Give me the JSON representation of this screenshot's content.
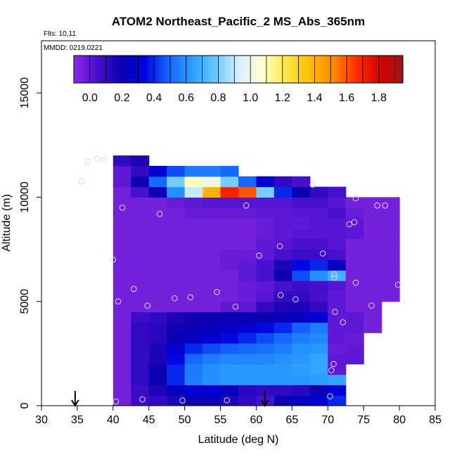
{
  "chart_data": {
    "type": "heatmap",
    "title": "ATOM2 Northeast_Pacific_2 MS_Abs_365nm",
    "annotations": [
      "Flts: 10,11",
      "MMDD: 0219,0221"
    ],
    "xlabel": "Latitude (deg N)",
    "ylabel": "Altitude (m)",
    "xlim": [
      30,
      85
    ],
    "ylim": [
      0,
      17500
    ],
    "x_ticks": [
      "30",
      "35",
      "40",
      "45",
      "50",
      "55",
      "60",
      "65",
      "70",
      "75",
      "80",
      "85"
    ],
    "y_ticks": [
      "0",
      "5000",
      "10000",
      "15000"
    ],
    "colorbar": {
      "range": [
        -0.1,
        1.95
      ],
      "ticks": [
        "0.0",
        "0.2",
        "0.4",
        "0.6",
        "0.8",
        "1.0",
        "1.2",
        "1.4",
        "1.6",
        "1.8"
      ],
      "colors": [
        "#8a2be2",
        "#4b0fd0",
        "#0a00b0",
        "#0000e0",
        "#1464ff",
        "#2a9cff",
        "#64c8ff",
        "#d6f0ff",
        "#ffffd2",
        "#ffe84a",
        "#ffbe00",
        "#ff8c00",
        "#ff3000",
        "#d80000",
        "#9a1a1a"
      ]
    },
    "markers": [
      {
        "type": "arrow-down",
        "lat": 34.7
      },
      {
        "type": "arrow-down",
        "lat": 61.2
      }
    ],
    "lat_bins": [
      40,
      42.5,
      45,
      47.5,
      50,
      52.5,
      55,
      57.5,
      60,
      62.5,
      65,
      67.5,
      70,
      72.5,
      75,
      77.5,
      80
    ],
    "alt_bins": [
      0,
      500,
      1000,
      1500,
      2000,
      2500,
      3000,
      3500,
      4000,
      4500,
      5000,
      5500,
      6000,
      6500,
      7000,
      7500,
      8000,
      8500,
      9000,
      9500,
      10000,
      10500,
      11000,
      11500,
      12000
    ],
    "mean_values": [
      [
        -0.05,
        0.08,
        0.1,
        0.15,
        0.2,
        0.22,
        0.15,
        0.1,
        0.05,
        0.2,
        0.25,
        0.3,
        0.4,
        null,
        null,
        null
      ],
      [
        -0.05,
        0.08,
        0.15,
        0.25,
        0.3,
        0.3,
        0.25,
        0.12,
        0.1,
        0.1,
        0.12,
        0.2,
        0.3,
        null,
        null,
        null
      ],
      [
        -0.05,
        0.1,
        0.2,
        0.4,
        0.55,
        0.6,
        0.62,
        0.62,
        0.62,
        0.62,
        0.62,
        0.64,
        0.66,
        null,
        null,
        null
      ],
      [
        -0.05,
        0.1,
        0.2,
        0.4,
        0.55,
        0.6,
        0.62,
        0.62,
        0.62,
        0.62,
        0.64,
        0.66,
        0.0,
        null,
        null,
        null
      ],
      [
        -0.05,
        0.1,
        0.15,
        0.35,
        0.5,
        0.55,
        0.58,
        0.58,
        0.58,
        0.6,
        0.62,
        0.66,
        0.0,
        0.0,
        null,
        null
      ],
      [
        -0.05,
        0.1,
        0.15,
        0.3,
        0.4,
        0.45,
        0.48,
        0.5,
        0.52,
        0.55,
        0.6,
        0.62,
        -0.02,
        0.0,
        null,
        null
      ],
      [
        -0.05,
        0.1,
        0.12,
        0.2,
        0.25,
        0.3,
        0.35,
        0.4,
        0.45,
        0.5,
        0.55,
        0.58,
        0.0,
        -0.02,
        null,
        null
      ],
      [
        -0.05,
        0.1,
        0.12,
        0.18,
        0.2,
        0.22,
        0.25,
        0.3,
        0.35,
        0.4,
        0.48,
        0.55,
        0.0,
        0.0,
        -0.05,
        null
      ],
      [
        -0.05,
        0.08,
        0.1,
        0.15,
        0.18,
        0.2,
        0.2,
        0.2,
        0.2,
        0.22,
        0.25,
        0.3,
        0.0,
        0.0,
        -0.05,
        null
      ],
      [
        -0.05,
        -0.05,
        -0.05,
        -0.05,
        -0.05,
        -0.05,
        0.0,
        0.0,
        0.1,
        0.15,
        0.15,
        0.1,
        0.0,
        -0.05,
        -0.05,
        null
      ],
      [
        -0.05,
        -0.05,
        -0.05,
        -0.05,
        -0.05,
        -0.05,
        -0.05,
        -0.02,
        0.02,
        0.1,
        0.1,
        0.05,
        0.0,
        -0.05,
        -0.05,
        -0.05
      ],
      [
        -0.05,
        -0.05,
        -0.05,
        -0.05,
        -0.05,
        -0.05,
        -0.05,
        -0.02,
        0.0,
        0.05,
        0.08,
        0.06,
        0.02,
        -0.05,
        -0.05,
        -0.05
      ],
      [
        -0.05,
        -0.05,
        -0.05,
        -0.05,
        -0.05,
        -0.05,
        -0.05,
        0.0,
        0.05,
        0.2,
        0.45,
        0.6,
        0.7,
        -0.05,
        -0.05,
        -0.05
      ],
      [
        -0.05,
        -0.05,
        -0.05,
        -0.05,
        -0.05,
        -0.05,
        -0.02,
        0.0,
        0.05,
        0.15,
        0.35,
        0.4,
        0.25,
        -0.05,
        -0.05,
        -0.05
      ],
      [
        -0.05,
        -0.05,
        -0.05,
        -0.05,
        -0.05,
        -0.05,
        -0.02,
        -0.02,
        0.0,
        0.05,
        0.08,
        0.08,
        0.05,
        -0.05,
        -0.05,
        -0.05
      ],
      [
        -0.05,
        -0.05,
        -0.05,
        -0.05,
        -0.05,
        -0.05,
        -0.05,
        -0.05,
        0.0,
        0.02,
        0.05,
        0.05,
        0.02,
        -0.05,
        -0.05,
        -0.05
      ],
      [
        -0.05,
        -0.05,
        -0.05,
        -0.05,
        -0.05,
        -0.05,
        -0.05,
        -0.05,
        -0.02,
        0.0,
        0.02,
        0.02,
        0.02,
        0.0,
        -0.05,
        -0.05
      ],
      [
        -0.05,
        -0.05,
        -0.05,
        -0.05,
        -0.05,
        -0.05,
        -0.05,
        -0.05,
        -0.02,
        0.0,
        0.0,
        0.02,
        0.02,
        0.0,
        -0.05,
        -0.05
      ],
      [
        -0.05,
        -0.05,
        -0.05,
        -0.05,
        -0.02,
        -0.02,
        -0.02,
        -0.02,
        0.0,
        0.0,
        0.02,
        0.02,
        0.05,
        -0.02,
        -0.05,
        -0.05
      ],
      [
        -0.05,
        -0.05,
        -0.05,
        -0.02,
        0.0,
        0.02,
        0.02,
        0.02,
        0.02,
        0.02,
        0.05,
        0.05,
        0.02,
        -0.05,
        -0.05,
        -0.05
      ],
      [
        -0.05,
        0.05,
        0.2,
        0.6,
        0.9,
        1.4,
        1.7,
        1.6,
        0.8,
        0.4,
        0.2,
        0.1,
        0.05,
        null,
        null,
        null
      ],
      [
        0.0,
        0.2,
        0.5,
        0.8,
        1.1,
        1.0,
        0.8,
        0.5,
        0.3,
        0.1,
        0.05,
        null,
        null,
        null,
        null,
        null
      ],
      [
        0.0,
        0.1,
        0.3,
        0.45,
        0.55,
        0.55,
        0.5,
        null,
        null,
        null,
        null,
        null,
        null,
        null,
        null,
        null
      ],
      [
        0.1,
        0.15,
        null,
        null,
        null,
        null,
        null,
        null,
        null,
        null,
        null,
        null,
        null,
        null,
        null,
        null
      ]
    ],
    "sample_points": [
      [
        40.4,
        200
      ],
      [
        44.1,
        300
      ],
      [
        49.7,
        250
      ],
      [
        55.9,
        260
      ],
      [
        70.3,
        450
      ],
      [
        70.5,
        1700
      ],
      [
        70.8,
        2000
      ],
      [
        72.1,
        4000
      ],
      [
        71.0,
        4500
      ],
      [
        76.1,
        4800
      ],
      [
        40.7,
        5000
      ],
      [
        44.8,
        4800
      ],
      [
        48.6,
        5150
      ],
      [
        50.8,
        5200
      ],
      [
        57.1,
        4750
      ],
      [
        63.4,
        5300
      ],
      [
        65.5,
        5100
      ],
      [
        42.9,
        5600
      ],
      [
        54.5,
        5450
      ],
      [
        70.9,
        6150
      ],
      [
        70.9,
        6300
      ],
      [
        73.9,
        5900
      ],
      [
        79.8,
        5800
      ],
      [
        40.0,
        7000
      ],
      [
        60.4,
        7200
      ],
      [
        63.3,
        7650
      ],
      [
        69.3,
        7300
      ],
      [
        73.0,
        8700
      ],
      [
        73.7,
        8800
      ],
      [
        41.3,
        9500
      ],
      [
        46.5,
        9200
      ],
      [
        58.6,
        9600
      ],
      [
        73.9,
        9950
      ],
      [
        76.9,
        9600
      ],
      [
        78.0,
        9600
      ],
      [
        52.3,
        10300
      ],
      [
        35.6,
        10750
      ],
      [
        67.9,
        10600
      ],
      [
        36.5,
        11700
      ],
      [
        37.7,
        11850
      ],
      [
        38.7,
        11800
      ]
    ]
  }
}
